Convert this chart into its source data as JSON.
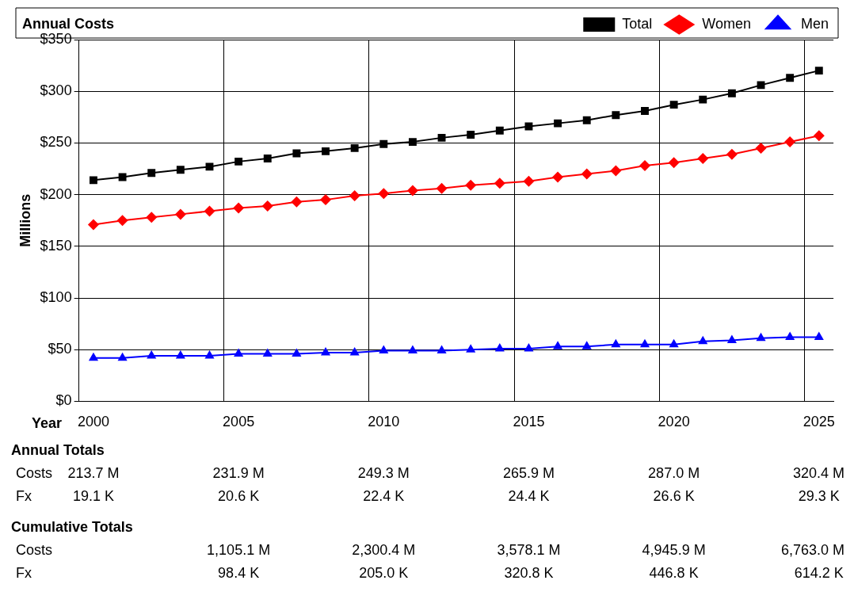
{
  "chart_data": {
    "type": "line",
    "title": "Annual Costs",
    "xlabel": "Year",
    "ylabel": "Millions",
    "categories": [
      "2000",
      null,
      null,
      null,
      null,
      "2005",
      null,
      null,
      null,
      null,
      "2010",
      null,
      null,
      null,
      null,
      "2015",
      null,
      null,
      null,
      null,
      "2020",
      null,
      null,
      null,
      null,
      "2025"
    ],
    "series": [
      {
        "name": "Total",
        "color": "#000000",
        "marker": "square",
        "values": [
          214,
          217,
          221,
          224,
          227,
          232,
          235,
          240,
          242,
          245,
          249,
          251,
          255,
          258,
          262,
          266,
          269,
          272,
          277,
          281,
          287,
          292,
          298,
          306,
          313,
          320
        ]
      },
      {
        "name": "Women",
        "color": "#ff0000",
        "marker": "diamond",
        "values": [
          171,
          175,
          178,
          181,
          184,
          187,
          189,
          193,
          195,
          199,
          201,
          204,
          206,
          209,
          211,
          213,
          217,
          220,
          223,
          228,
          231,
          235,
          239,
          245,
          251,
          257
        ]
      },
      {
        "name": "Men",
        "color": "#0000ff",
        "marker": "triangle",
        "values": [
          42,
          42,
          44,
          44,
          44,
          46,
          46,
          46,
          47,
          47,
          49,
          49,
          49,
          50,
          51,
          51,
          53,
          53,
          55,
          55,
          55,
          58,
          59,
          61,
          62,
          62
        ]
      }
    ],
    "ylim": [
      0,
      350
    ],
    "yticks": [
      {
        "value": 0,
        "label": "$0"
      },
      {
        "value": 50,
        "label": "$50"
      },
      {
        "value": 100,
        "label": "$100"
      },
      {
        "value": 150,
        "label": "$150"
      },
      {
        "value": 200,
        "label": "$200"
      },
      {
        "value": 250,
        "label": "$250"
      },
      {
        "value": 300,
        "label": "$300"
      },
      {
        "value": 350,
        "label": "$350"
      }
    ],
    "grid": true,
    "legend": "top right",
    "line_style": "solid",
    "annotations": [
      "Annual Totals",
      "Costs",
      "213.7 M",
      "231.9 M",
      "249.3 M",
      "265.9 M",
      "287.0 M",
      "320.4 M",
      "Fx",
      "19.1 K",
      "20.6 K",
      "22.4 K",
      "24.4 K",
      "26.6 K",
      "29.3 K",
      "Cumulative Totals",
      "Costs",
      "1,105.1 M",
      "2,300.4 M",
      "3,578.1 M",
      "4,945.9 M",
      "6,763.0 M",
      "Fx",
      "98.4 K",
      "205.0 K",
      "320.8 K",
      "446.8 K",
      "614.2 K"
    ]
  }
}
